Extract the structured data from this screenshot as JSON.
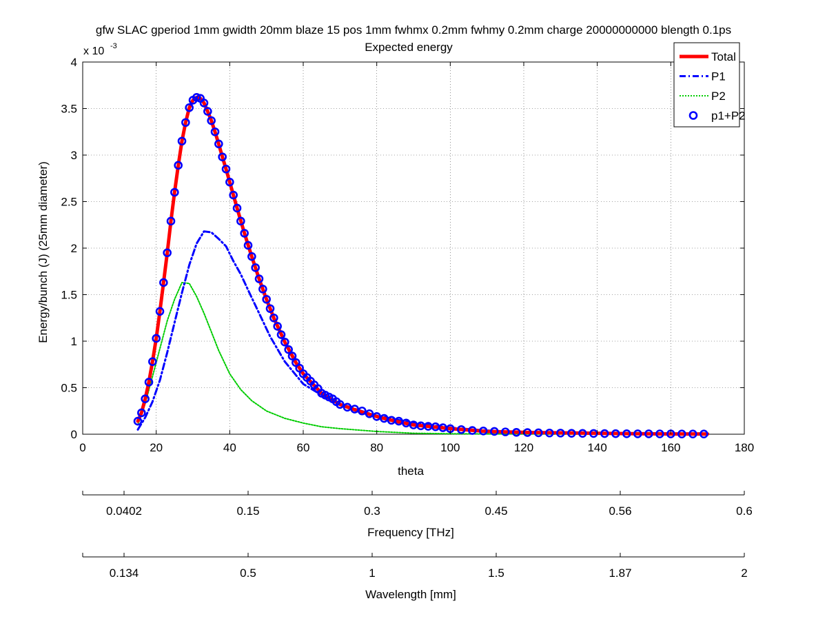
{
  "chart_data": {
    "type": "line",
    "title": "gfw SLAC gperiod 1mm gwidth 20mm blaze 15 pos 1mm fwhmx 0.2mm fwhmy 0.2mm charge 20000000000 blength 0.1ps",
    "subtitle": "Expected energy",
    "xlabel": "theta",
    "ylabel": "Energy/bunch (J) (25mm diameter)",
    "y_exponent_label": "x 10",
    "y_exponent_power": "-3",
    "xlim": [
      0,
      180
    ],
    "ylim": [
      0,
      4
    ],
    "x_ticks": [
      "0",
      "20",
      "40",
      "60",
      "80",
      "100",
      "120",
      "140",
      "160",
      "180"
    ],
    "y_ticks": [
      "0",
      "0.5",
      "1",
      "1.5",
      "2",
      "2.5",
      "3",
      "3.5",
      "4"
    ],
    "grid": true,
    "legend_position": "top-right",
    "series": [
      {
        "name": "Total",
        "color": "#ff0000",
        "style": "solid",
        "x": [
          15,
          16,
          17,
          18,
          19,
          20,
          21,
          22,
          23,
          24,
          25,
          26,
          27,
          28,
          29,
          30,
          31,
          32,
          33,
          34,
          35,
          36,
          37,
          38,
          39,
          40,
          42,
          44,
          46,
          48,
          50,
          52,
          55,
          58,
          60,
          65,
          70,
          75,
          80,
          85,
          90,
          95,
          100,
          110,
          120,
          130,
          140,
          150,
          160,
          170
        ],
        "values": [
          0.14,
          0.23,
          0.38,
          0.56,
          0.78,
          1.03,
          1.32,
          1.63,
          1.95,
          2.29,
          2.6,
          2.89,
          3.15,
          3.35,
          3.51,
          3.59,
          3.62,
          3.61,
          3.56,
          3.47,
          3.37,
          3.25,
          3.12,
          2.98,
          2.85,
          2.71,
          2.43,
          2.16,
          1.91,
          1.67,
          1.45,
          1.25,
          0.99,
          0.77,
          0.65,
          0.44,
          0.32,
          0.25,
          0.19,
          0.14,
          0.1,
          0.08,
          0.06,
          0.03,
          0.02,
          0.015,
          0.01,
          0.005,
          0.003,
          0.002
        ]
      },
      {
        "name": "P1",
        "color": "#0000ff",
        "style": "dashdot",
        "x": [
          15,
          17,
          19,
          21,
          23,
          25,
          27,
          29,
          31,
          33,
          35,
          37,
          39,
          41,
          43,
          45,
          48,
          51,
          55,
          60,
          65,
          70,
          75,
          80,
          90,
          100,
          110,
          120,
          130,
          140,
          150,
          160,
          170
        ],
        "values": [
          0.05,
          0.18,
          0.35,
          0.58,
          0.88,
          1.2,
          1.52,
          1.82,
          2.05,
          2.18,
          2.17,
          2.1,
          2.02,
          1.86,
          1.72,
          1.55,
          1.3,
          1.05,
          0.78,
          0.54,
          0.42,
          0.33,
          0.26,
          0.2,
          0.12,
          0.07,
          0.04,
          0.02,
          0.015,
          0.01,
          0.005,
          0.003,
          0.002
        ]
      },
      {
        "name": "P2",
        "color": "#00cc00",
        "style": "dotted",
        "x": [
          15,
          17,
          19,
          21,
          23,
          25,
          27,
          29,
          31,
          33,
          35,
          37,
          40,
          43,
          46,
          50,
          55,
          60,
          65,
          70,
          80,
          90,
          100,
          110,
          120,
          130,
          140,
          150,
          160,
          170
        ],
        "values": [
          0.1,
          0.33,
          0.62,
          0.92,
          1.22,
          1.45,
          1.63,
          1.62,
          1.48,
          1.3,
          1.1,
          0.9,
          0.65,
          0.48,
          0.36,
          0.25,
          0.17,
          0.12,
          0.08,
          0.06,
          0.03,
          0.01,
          0.005,
          0.003,
          0.002,
          0.001,
          0.001,
          0.0,
          0.0,
          0.0
        ]
      },
      {
        "name": "p1+P2",
        "color": "#0000ff",
        "style": "markers-circle",
        "x": [
          15,
          16,
          17,
          18,
          19,
          20,
          21,
          22,
          23,
          24,
          25,
          26,
          27,
          28,
          29,
          30,
          31,
          32,
          33,
          34,
          35,
          36,
          37,
          38,
          39,
          40,
          41,
          42,
          43,
          44,
          45,
          46,
          47,
          48,
          49,
          50,
          51,
          52,
          53,
          54,
          55,
          56,
          57,
          58,
          59,
          60,
          61,
          62,
          63,
          64,
          65,
          66,
          67,
          68,
          69,
          70,
          72,
          74,
          76,
          78,
          80,
          82,
          84,
          86,
          88,
          90,
          92,
          94,
          96,
          98,
          100,
          103,
          106,
          109,
          112,
          115,
          118,
          121,
          124,
          127,
          130,
          133,
          136,
          139,
          142,
          145,
          148,
          151,
          154,
          157,
          160,
          163,
          166,
          169
        ],
        "values": [
          0.14,
          0.23,
          0.38,
          0.56,
          0.78,
          1.03,
          1.32,
          1.63,
          1.95,
          2.29,
          2.6,
          2.89,
          3.15,
          3.35,
          3.51,
          3.59,
          3.62,
          3.61,
          3.56,
          3.47,
          3.37,
          3.25,
          3.12,
          2.98,
          2.85,
          2.71,
          2.57,
          2.43,
          2.29,
          2.16,
          2.03,
          1.91,
          1.79,
          1.67,
          1.56,
          1.45,
          1.35,
          1.25,
          1.16,
          1.07,
          0.99,
          0.91,
          0.84,
          0.77,
          0.71,
          0.65,
          0.61,
          0.57,
          0.53,
          0.49,
          0.44,
          0.42,
          0.4,
          0.38,
          0.35,
          0.32,
          0.29,
          0.27,
          0.25,
          0.22,
          0.19,
          0.17,
          0.15,
          0.14,
          0.12,
          0.1,
          0.09,
          0.085,
          0.08,
          0.07,
          0.06,
          0.05,
          0.04,
          0.035,
          0.03,
          0.025,
          0.02,
          0.018,
          0.015,
          0.013,
          0.012,
          0.01,
          0.009,
          0.008,
          0.007,
          0.006,
          0.005,
          0.004,
          0.004,
          0.003,
          0.003,
          0.002,
          0.002,
          0.002
        ]
      }
    ],
    "secondary_axes": [
      {
        "label": "Frequency [THz]",
        "ticks": [
          {
            "x": 0,
            "label": ""
          },
          {
            "x": 15,
            "label": "0.0402"
          },
          {
            "x": 60,
            "label": "0.15"
          },
          {
            "x": 105,
            "label": "0.3"
          },
          {
            "x": 150,
            "label": "0.45"
          },
          {
            "x": 195,
            "label": "0.56"
          },
          {
            "x": 240,
            "label": "0.6"
          }
        ],
        "range": [
          0,
          240
        ]
      },
      {
        "label": "Wavelength [mm]",
        "ticks": [
          {
            "x": 0,
            "label": ""
          },
          {
            "x": 15,
            "label": "0.134"
          },
          {
            "x": 60,
            "label": "0.5"
          },
          {
            "x": 105,
            "label": "1"
          },
          {
            "x": 150,
            "label": "1.5"
          },
          {
            "x": 195,
            "label": "1.87"
          },
          {
            "x": 240,
            "label": "2"
          }
        ],
        "range": [
          0,
          240
        ]
      }
    ]
  }
}
